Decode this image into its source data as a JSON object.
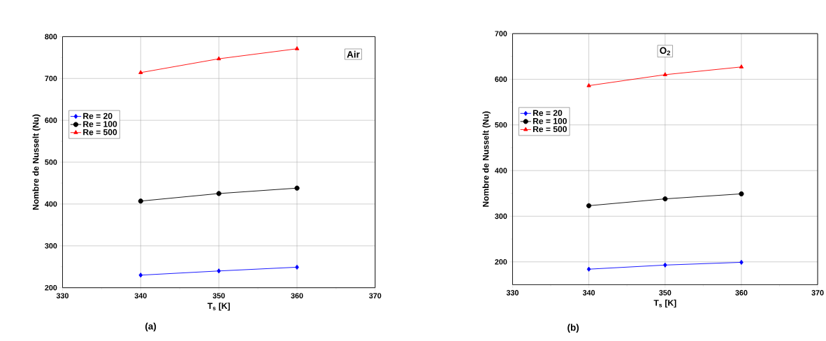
{
  "chart_data": [
    {
      "type": "line",
      "xlabel": "T$_{s}$ [K]",
      "ylabel": "Nombre de Nusselt (Nu)",
      "x": [
        340,
        350,
        360
      ],
      "xlim": [
        330,
        370
      ],
      "xticks": [
        330,
        340,
        350,
        360,
        370
      ],
      "ylim": [
        200,
        800
      ],
      "yticks": [
        200,
        300,
        400,
        500,
        600,
        700,
        800
      ],
      "grid": true,
      "legend": "left",
      "line_style": "solid",
      "annotations": [
        "Air",
        "(a)"
      ],
      "series": [
        {
          "name": "Re = 20",
          "color": "#0000ff",
          "marker": "diamond",
          "values": [
            230,
            240,
            249
          ]
        },
        {
          "name": "Re = 100",
          "color": "#000000",
          "marker": "circle",
          "values": [
            407,
            425,
            438
          ]
        },
        {
          "name": "Re = 500",
          "color": "#ff0000",
          "marker": "triangle",
          "values": [
            714,
            747,
            771
          ]
        }
      ]
    },
    {
      "type": "line",
      "xlabel": "T$_{s}$ [K]",
      "ylabel": "Nombre de Nusselt (Nu)",
      "x": [
        340,
        350,
        360
      ],
      "xlim": [
        330,
        370
      ],
      "xticks": [
        330,
        340,
        350,
        360,
        370
      ],
      "ylim": [
        150,
        700
      ],
      "yticks": [
        200,
        300,
        400,
        500,
        600,
        700
      ],
      "grid": true,
      "legend": "left",
      "line_style": "solid",
      "annotations": [
        "O$_{2}$",
        "(b)"
      ],
      "series": [
        {
          "name": "Re = 20",
          "color": "#0000ff",
          "marker": "diamond",
          "values": [
            184,
            193,
            199
          ]
        },
        {
          "name": "Re = 100",
          "color": "#000000",
          "marker": "circle",
          "values": [
            323,
            338,
            349
          ]
        },
        {
          "name": "Re = 500",
          "color": "#ff0000",
          "marker": "triangle",
          "values": [
            586,
            610,
            627
          ]
        }
      ]
    }
  ]
}
